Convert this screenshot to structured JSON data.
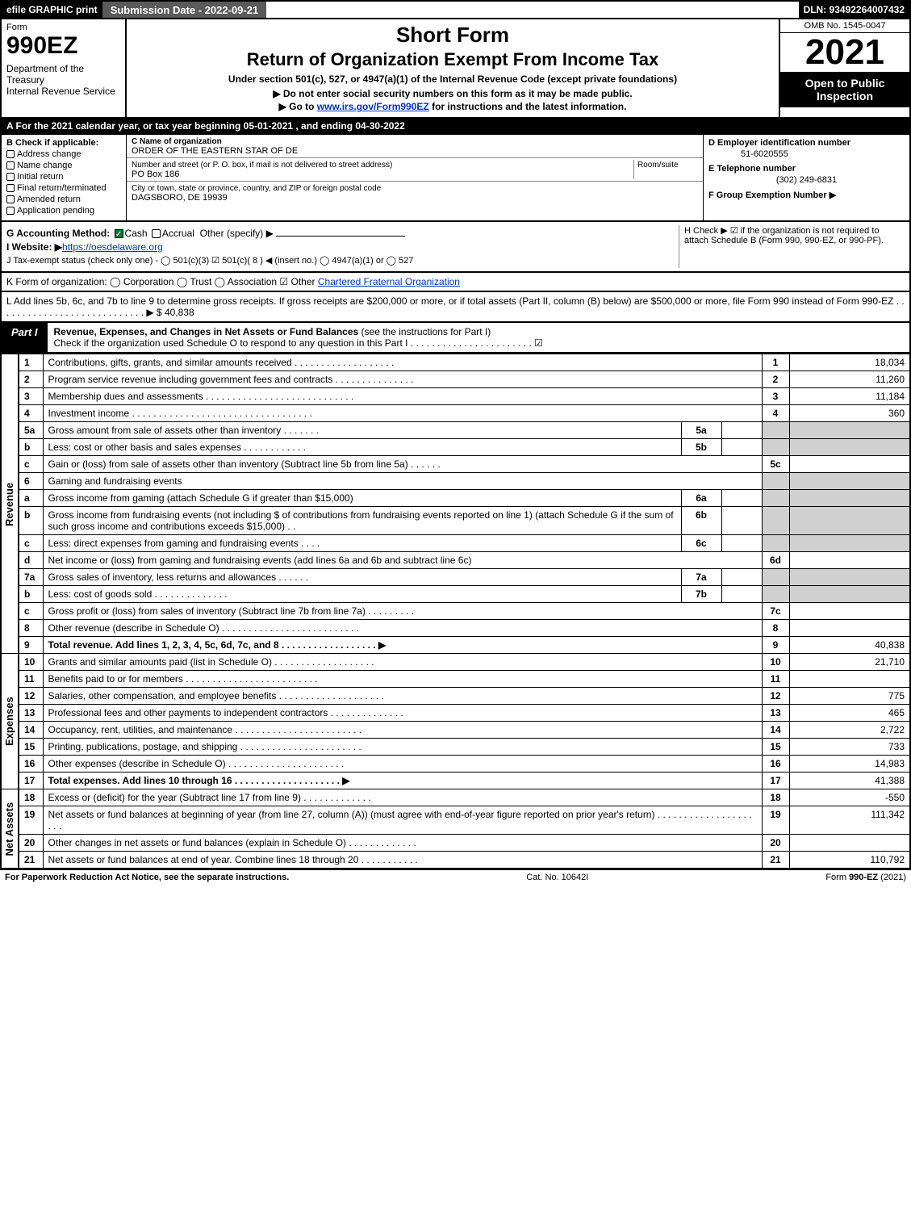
{
  "colors": {
    "black": "#000000",
    "white": "#ffffff",
    "darkgray": "#5a5a5a",
    "grey": "#d0d0d0",
    "link": "#0033cc",
    "green": "#0a7a3a"
  },
  "topbar": {
    "efile": "efile GRAPHIC print",
    "submission": "Submission Date - 2022-09-21",
    "dln": "DLN: 93492264007432"
  },
  "head": {
    "form": "Form",
    "formnum": "990EZ",
    "dept": "Department of the Treasury\nInternal Revenue Service",
    "title1": "Short Form",
    "title2": "Return of Organization Exempt From Income Tax",
    "under": "Under section 501(c), 527, or 4947(a)(1) of the Internal Revenue Code (except private foundations)",
    "arrow1": "▶ Do not enter social security numbers on this form as it may be made public.",
    "arrow2_pre": "▶ Go to ",
    "arrow2_link": "www.irs.gov/Form990EZ",
    "arrow2_post": " for instructions and the latest information.",
    "omb": "OMB No. 1545-0047",
    "year": "2021",
    "open": "Open to Public Inspection"
  },
  "rowA": "A  For the 2021 calendar year, or tax year beginning 05-01-2021 , and ending 04-30-2022",
  "B": {
    "label": "B  Check if applicable:",
    "opts": [
      "Address change",
      "Name change",
      "Initial return",
      "Final return/terminated",
      "Amended return",
      "Application pending"
    ]
  },
  "C": {
    "name_lbl": "C Name of organization",
    "name": "ORDER OF THE EASTERN STAR OF DE",
    "street_lbl": "Number and street (or P. O. box, if mail is not delivered to street address)",
    "room_lbl": "Room/suite",
    "street": "PO Box 186",
    "city_lbl": "City or town, state or province, country, and ZIP or foreign postal code",
    "city": "DAGSBORO, DE  19939"
  },
  "D": {
    "ein_lbl": "D Employer identification number",
    "ein": "51-6020555",
    "tel_lbl": "E Telephone number",
    "tel": "(302) 249-6831",
    "grp_lbl": "F Group Exemption Number  ▶"
  },
  "G": {
    "label": "G Accounting Method:",
    "cash": "Cash",
    "accrual": "Accrual",
    "other": "Other (specify) ▶"
  },
  "H": {
    "text": "H  Check ▶ ☑ if the organization is not required to attach Schedule B (Form 990, 990-EZ, or 990-PF)."
  },
  "I": {
    "label": "I Website: ▶",
    "url": "https://oesdelaware.org"
  },
  "J": {
    "text": "J Tax-exempt status (check only one) -  ◯ 501(c)(3)  ☑ 501(c)( 8 ) ◀ (insert no.)  ◯ 4947(a)(1) or  ◯ 527"
  },
  "K": {
    "text": "K Form of organization:   ◯ Corporation   ◯ Trust   ◯ Association   ☑ Other ",
    "other": "Chartered Fraternal Organization"
  },
  "L": {
    "text": "L Add lines 5b, 6c, and 7b to line 9 to determine gross receipts. If gross receipts are $200,000 or more, or if total assets (Part II, column (B) below) are $500,000 or more, file Form 990 instead of Form 990-EZ  .  .  .  .  .  .  .  .  .  .  .  .  .  .  .  .  .  .  .  .  .  .  .  .  .  .  .  .  ▶ $ ",
    "amt": "40,838"
  },
  "part1": {
    "tab": "Part I",
    "title": "Revenue, Expenses, and Changes in Net Assets or Fund Balances",
    "sub": "(see the instructions for Part I)",
    "check": "Check if the organization used Schedule O to respond to any question in this Part I   .  .  .  .  .  .  .  .  .  .  .  .  .  .  .  .  .  .  .  .  .  .  .   ☑"
  },
  "sections": {
    "rev": "Revenue",
    "exp": "Expenses",
    "net": "Net Assets"
  },
  "rows": [
    {
      "n": "1",
      "d": "Contributions, gifts, grants, and similar amounts received  .  .  .  .  .  .  .  .  .  .  .  .  .  .  .  .  .  .  .",
      "box": "1",
      "amt": "18,034"
    },
    {
      "n": "2",
      "d": "Program service revenue including government fees and contracts  .  .  .  .  .  .  .  .  .  .  .  .  .  .  .",
      "box": "2",
      "amt": "11,260"
    },
    {
      "n": "3",
      "d": "Membership dues and assessments  .  .  .  .  .  .  .  .  .  .  .  .  .  .  .  .  .  .  .  .  .  .  .  .  .  .  .  .",
      "box": "3",
      "amt": "11,184"
    },
    {
      "n": "4",
      "d": "Investment income  .  .  .  .  .  .  .  .  .  .  .  .  .  .  .  .  .  .  .  .  .  .  .  .  .  .  .  .  .  .  .  .  .  .",
      "box": "4",
      "amt": "360"
    },
    {
      "n": "5a",
      "d": "Gross amount from sale of assets other than inventory  .  .  .  .  .  .  .",
      "sub": "5a",
      "subv": "",
      "box": "",
      "amt": "",
      "grey": true
    },
    {
      "n": "b",
      "d": "Less: cost or other basis and sales expenses  .  .  .  .  .  .  .  .  .  .  .  .",
      "sub": "5b",
      "subv": "",
      "box": "",
      "amt": "",
      "grey": true
    },
    {
      "n": "c",
      "d": "Gain or (loss) from sale of assets other than inventory (Subtract line 5b from line 5a)  .  .  .  .  .  .",
      "box": "5c",
      "amt": ""
    },
    {
      "n": "6",
      "d": "Gaming and fundraising events",
      "box": "",
      "amt": "",
      "grey": true
    },
    {
      "n": "a",
      "d": "Gross income from gaming (attach Schedule G if greater than $15,000)",
      "sub": "6a",
      "subv": "",
      "box": "",
      "amt": "",
      "grey": true
    },
    {
      "n": "b",
      "d": "Gross income from fundraising events (not including $                  of contributions from fundraising events reported on line 1) (attach Schedule G if the sum of such gross income and contributions exceeds $15,000)    .  .",
      "sub": "6b",
      "subv": "",
      "box": "",
      "amt": "",
      "grey": true
    },
    {
      "n": "c",
      "d": "Less: direct expenses from gaming and fundraising events    .  .  .  .",
      "sub": "6c",
      "subv": "",
      "box": "",
      "amt": "",
      "grey": true
    },
    {
      "n": "d",
      "d": "Net income or (loss) from gaming and fundraising events (add lines 6a and 6b and subtract line 6c)",
      "box": "6d",
      "amt": ""
    },
    {
      "n": "7a",
      "d": "Gross sales of inventory, less returns and allowances  .  .  .  .  .  .",
      "sub": "7a",
      "subv": "",
      "box": "",
      "amt": "",
      "grey": true
    },
    {
      "n": "b",
      "d": "Less: cost of goods sold           .  .  .  .  .  .  .  .  .  .  .  .  .  .",
      "sub": "7b",
      "subv": "",
      "box": "",
      "amt": "",
      "grey": true
    },
    {
      "n": "c",
      "d": "Gross profit or (loss) from sales of inventory (Subtract line 7b from line 7a)  .  .  .  .  .  .  .  .  .",
      "box": "7c",
      "amt": ""
    },
    {
      "n": "8",
      "d": "Other revenue (describe in Schedule O)  .  .  .  .  .  .  .  .  .  .  .  .  .  .  .  .  .  .  .  .  .  .  .  .  .  .",
      "box": "8",
      "amt": ""
    },
    {
      "n": "9",
      "d": "Total revenue. Add lines 1, 2, 3, 4, 5c, 6d, 7c, and 8    .  .  .  .  .  .  .  .  .  .  .  .  .  .  .  .  .  .  ▶",
      "box": "9",
      "amt": "40,838",
      "bold": true
    },
    {
      "n": "10",
      "d": "Grants and similar amounts paid (list in Schedule O)  .  .  .  .  .  .  .  .  .  .  .  .  .  .  .  .  .  .  .",
      "box": "10",
      "amt": "21,710",
      "sec": "exp"
    },
    {
      "n": "11",
      "d": "Benefits paid to or for members       .  .  .  .  .  .  .  .  .  .  .  .  .  .  .  .  .  .  .  .  .  .  .  .  .",
      "box": "11",
      "amt": ""
    },
    {
      "n": "12",
      "d": "Salaries, other compensation, and employee benefits  .  .  .  .  .  .  .  .  .  .  .  .  .  .  .  .  .  .  .  .",
      "box": "12",
      "amt": "775"
    },
    {
      "n": "13",
      "d": "Professional fees and other payments to independent contractors  .  .  .  .  .  .  .  .  .  .  .  .  .  .",
      "box": "13",
      "amt": "465"
    },
    {
      "n": "14",
      "d": "Occupancy, rent, utilities, and maintenance  .  .  .  .  .  .  .  .  .  .  .  .  .  .  .  .  .  .  .  .  .  .  .  .",
      "box": "14",
      "amt": "2,722"
    },
    {
      "n": "15",
      "d": "Printing, publications, postage, and shipping  .  .  .  .  .  .  .  .  .  .  .  .  .  .  .  .  .  .  .  .  .  .  .",
      "box": "15",
      "amt": "733"
    },
    {
      "n": "16",
      "d": "Other expenses (describe in Schedule O)       .  .  .  .  .  .  .  .  .  .  .  .  .  .  .  .  .  .  .  .  .  .",
      "box": "16",
      "amt": "14,983"
    },
    {
      "n": "17",
      "d": "Total expenses. Add lines 10 through 16       .  .  .  .  .  .  .  .  .  .  .  .  .  .  .  .  .  .  .  .  ▶",
      "box": "17",
      "amt": "41,388",
      "bold": true
    },
    {
      "n": "18",
      "d": "Excess or (deficit) for the year (Subtract line 17 from line 9)         .  .  .  .  .  .  .  .  .  .  .  .  .",
      "box": "18",
      "amt": "-550",
      "sec": "net"
    },
    {
      "n": "19",
      "d": "Net assets or fund balances at beginning of year (from line 27, column (A)) (must agree with end-of-year figure reported on prior year's return)  .  .  .  .  .  .  .  .  .  .  .  .  .  .  .  .  .  .  .  .  .",
      "box": "19",
      "amt": "111,342"
    },
    {
      "n": "20",
      "d": "Other changes in net assets or fund balances (explain in Schedule O)  .  .  .  .  .  .  .  .  .  .  .  .  .",
      "box": "20",
      "amt": ""
    },
    {
      "n": "21",
      "d": "Net assets or fund balances at end of year. Combine lines 18 through 20  .  .  .  .  .  .  .  .  .  .  .",
      "box": "21",
      "amt": "110,792"
    }
  ],
  "footer": {
    "left": "For Paperwork Reduction Act Notice, see the separate instructions.",
    "mid": "Cat. No. 10642I",
    "right_pre": "Form ",
    "right_bold": "990-EZ",
    "right_post": " (2021)"
  }
}
